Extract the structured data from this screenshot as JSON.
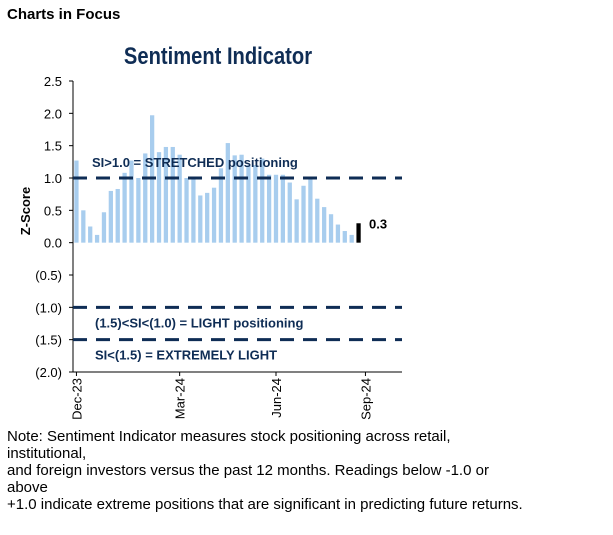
{
  "header": {
    "title": "Charts in Focus"
  },
  "chart_data": {
    "type": "bar",
    "title": "Sentiment Indicator",
    "ylabel": "Z-Score",
    "xlabel": "",
    "ylim": [
      -2.0,
      2.5
    ],
    "y_ticks": [
      2.5,
      2.0,
      1.5,
      1.0,
      0.5,
      0.0,
      -0.5,
      -1.0,
      -1.5,
      -2.0
    ],
    "y_tick_labels": [
      "2.5",
      "2.0",
      "1.5",
      "1.0",
      "0.5",
      "0.0",
      "(0.5)",
      "(1.0)",
      "(1.5)",
      "(2.0)"
    ],
    "x_tick_labels": [
      {
        "label": "Dec-23",
        "index": 0
      },
      {
        "label": "Mar-24",
        "index": 15
      },
      {
        "label": "Jun-24",
        "index": 29
      },
      {
        "label": "Sep-24",
        "index": 42
      }
    ],
    "values": [
      1.27,
      0.5,
      0.25,
      0.12,
      0.47,
      0.8,
      0.83,
      1.08,
      1.27,
      1.0,
      1.38,
      1.97,
      1.4,
      1.48,
      1.48,
      1.36,
      1.0,
      1.0,
      0.73,
      0.77,
      0.85,
      1.15,
      1.54,
      1.35,
      1.36,
      1.2,
      1.2,
      1.3,
      1.05,
      1.05,
      1.05,
      0.93,
      0.67,
      0.88,
      0.98,
      0.68,
      0.55,
      0.44,
      0.28,
      0.18,
      0.12,
      0.3
    ],
    "bar_color": "#a8cdee",
    "reference_lines": [
      {
        "y": 1.0,
        "label": "SI>1.0 = STRETCHED positioning",
        "color": "#0f2d55"
      },
      {
        "y": -1.0,
        "label": "(1.5)<SI<(1.0) = LIGHT positioning",
        "color": "#0f2d55"
      },
      {
        "y": -1.5,
        "label": "SI<(1.5) = EXTREMELY LIGHT",
        "color": "#0f2d55"
      }
    ],
    "last_value_label": "0.3",
    "grid": false
  },
  "note": {
    "lines": [
      "Note: Sentiment Indicator measures stock positioning across retail,",
      "institutional,",
      "and foreign investors versus the past 12 months. Readings below -1.0 or",
      "above",
      "+1.0 indicate extreme positions that are significant in predicting future returns."
    ]
  }
}
